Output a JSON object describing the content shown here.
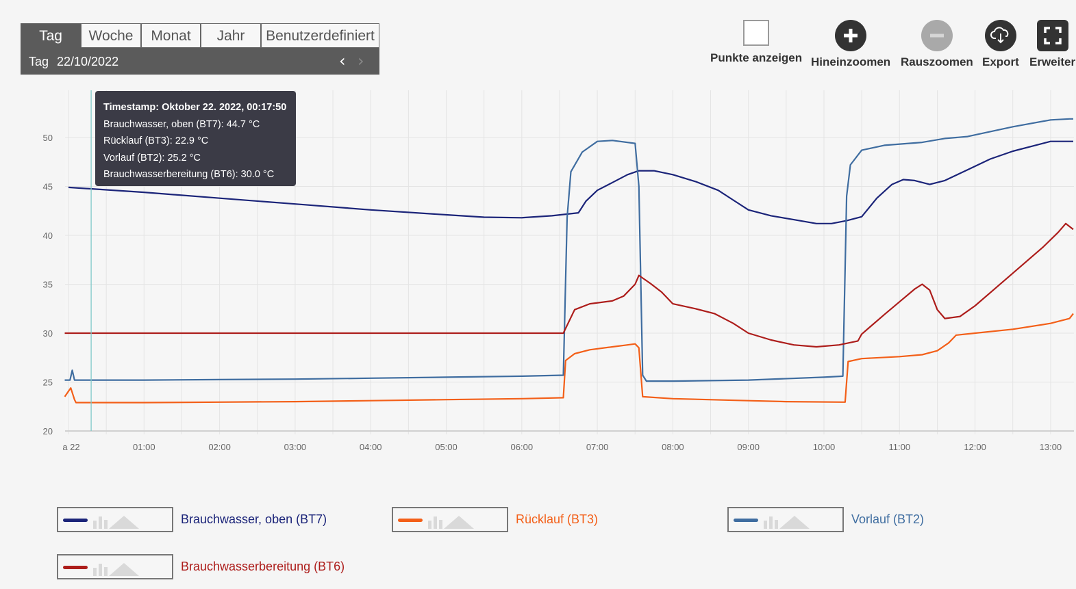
{
  "period": {
    "tabs": [
      {
        "label": "Tag",
        "active": true
      },
      {
        "label": "Woche",
        "active": false
      },
      {
        "label": "Monat",
        "active": false
      },
      {
        "label": "Jahr",
        "active": false
      },
      {
        "label": "Benutzerdefiniert",
        "active": false
      }
    ],
    "date_label": "Tag",
    "date_value": "22/10/2022"
  },
  "toolbar": {
    "show_points": "Punkte anzeigen",
    "zoom_in": "Hineinzoomen",
    "zoom_out": "Rauszoomen",
    "export": "Export",
    "expand": "Erweiter"
  },
  "icons": {
    "checkbox": "checkbox-icon",
    "zoom_in": "plus-icon",
    "zoom_out": "minus-icon",
    "export": "cloud-download-icon",
    "expand": "fullscreen-icon",
    "prev": "chevron-left-icon",
    "next": "chevron-right-icon"
  },
  "tooltip": {
    "title": "Timestamp: Oktober 22. 2022, 00:17:50",
    "lines": [
      "Brauchwasser, oben (BT7): 44.7 °C",
      "Rücklauf (BT3): 22.9 °C",
      "Vorlauf (BT2): 25.2 °C",
      "Brauchwasserbereitung (BT6): 30.0 °C"
    ]
  },
  "chart_data": {
    "type": "line",
    "x_unit": "hours",
    "xlim": [
      -0.05,
      13.3
    ],
    "ylim": [
      20,
      54
    ],
    "yticks": [
      20,
      25,
      30,
      35,
      40,
      45,
      50
    ],
    "xticks": [
      {
        "x": 0,
        "label": "a 22"
      },
      {
        "x": 1,
        "label": "01:00"
      },
      {
        "x": 2,
        "label": "02:00"
      },
      {
        "x": 3,
        "label": "03:00"
      },
      {
        "x": 4,
        "label": "04:00"
      },
      {
        "x": 5,
        "label": "05:00"
      },
      {
        "x": 6,
        "label": "06:00"
      },
      {
        "x": 7,
        "label": "07:00"
      },
      {
        "x": 8,
        "label": "08:00"
      },
      {
        "x": 9,
        "label": "09:00"
      },
      {
        "x": 10,
        "label": "10:00"
      },
      {
        "x": 11,
        "label": "11:00"
      },
      {
        "x": 12,
        "label": "12:00"
      },
      {
        "x": 13,
        "label": "13:00"
      }
    ],
    "grid": true,
    "cursor_x": 0.3,
    "series": [
      {
        "name": "Brauchwasser, oben (BT7)",
        "color": "#1b2479",
        "points": [
          [
            0,
            44.9
          ],
          [
            1,
            44.4
          ],
          [
            2,
            43.8
          ],
          [
            3,
            43.2
          ],
          [
            4,
            42.6
          ],
          [
            5,
            42.1
          ],
          [
            5.5,
            41.85
          ],
          [
            6,
            41.8
          ],
          [
            6.4,
            42.0
          ],
          [
            6.75,
            42.3
          ],
          [
            6.85,
            43.5
          ],
          [
            7,
            44.6
          ],
          [
            7.2,
            45.4
          ],
          [
            7.4,
            46.2
          ],
          [
            7.55,
            46.6
          ],
          [
            7.75,
            46.6
          ],
          [
            8,
            46.2
          ],
          [
            8.3,
            45.5
          ],
          [
            8.6,
            44.6
          ],
          [
            8.8,
            43.6
          ],
          [
            9,
            42.6
          ],
          [
            9.3,
            42.0
          ],
          [
            9.6,
            41.6
          ],
          [
            9.9,
            41.2
          ],
          [
            10.1,
            41.2
          ],
          [
            10.3,
            41.5
          ],
          [
            10.5,
            41.9
          ],
          [
            10.7,
            43.8
          ],
          [
            10.9,
            45.2
          ],
          [
            11.05,
            45.7
          ],
          [
            11.2,
            45.6
          ],
          [
            11.4,
            45.2
          ],
          [
            11.6,
            45.6
          ],
          [
            11.9,
            46.7
          ],
          [
            12.2,
            47.8
          ],
          [
            12.5,
            48.6
          ],
          [
            12.8,
            49.2
          ],
          [
            13.0,
            49.6
          ],
          [
            13.3,
            49.6
          ]
        ]
      },
      {
        "name": "Rücklauf (BT3)",
        "color": "#f35f18",
        "points": [
          [
            -0.05,
            23.5
          ],
          [
            0.03,
            24.4
          ],
          [
            0.08,
            23.2
          ],
          [
            0.1,
            22.9
          ],
          [
            1,
            22.9
          ],
          [
            2,
            22.95
          ],
          [
            3,
            23.0
          ],
          [
            4,
            23.1
          ],
          [
            5,
            23.2
          ],
          [
            6,
            23.3
          ],
          [
            6.55,
            23.4
          ],
          [
            6.58,
            27.2
          ],
          [
            6.7,
            27.9
          ],
          [
            6.9,
            28.3
          ],
          [
            7.2,
            28.6
          ],
          [
            7.4,
            28.8
          ],
          [
            7.5,
            28.9
          ],
          [
            7.55,
            28.5
          ],
          [
            7.6,
            23.5
          ],
          [
            8,
            23.3
          ],
          [
            9,
            23.1
          ],
          [
            9.5,
            23.0
          ],
          [
            10.25,
            22.95
          ],
          [
            10.28,
            22.95
          ],
          [
            10.32,
            27.1
          ],
          [
            10.5,
            27.4
          ],
          [
            11,
            27.6
          ],
          [
            11.3,
            27.8
          ],
          [
            11.5,
            28.2
          ],
          [
            11.65,
            29.0
          ],
          [
            11.75,
            29.8
          ],
          [
            12,
            30.0
          ],
          [
            12.5,
            30.4
          ],
          [
            13,
            31.0
          ],
          [
            13.25,
            31.5
          ],
          [
            13.3,
            32.0
          ]
        ]
      },
      {
        "name": "Vorlauf (BT2)",
        "color": "#3f6da0",
        "points": [
          [
            -0.05,
            25.2
          ],
          [
            0.02,
            25.2
          ],
          [
            0.05,
            26.2
          ],
          [
            0.08,
            25.2
          ],
          [
            1,
            25.2
          ],
          [
            2,
            25.25
          ],
          [
            3,
            25.3
          ],
          [
            4,
            25.4
          ],
          [
            5,
            25.5
          ],
          [
            6,
            25.6
          ],
          [
            6.55,
            25.7
          ],
          [
            6.6,
            41.8
          ],
          [
            6.65,
            46.5
          ],
          [
            6.8,
            48.5
          ],
          [
            7.0,
            49.6
          ],
          [
            7.2,
            49.7
          ],
          [
            7.5,
            49.4
          ],
          [
            7.55,
            45.0
          ],
          [
            7.6,
            25.7
          ],
          [
            7.65,
            25.1
          ],
          [
            8,
            25.1
          ],
          [
            9,
            25.2
          ],
          [
            10,
            25.5
          ],
          [
            10.25,
            25.6
          ],
          [
            10.3,
            44.0
          ],
          [
            10.35,
            47.2
          ],
          [
            10.5,
            48.7
          ],
          [
            10.8,
            49.2
          ],
          [
            11.3,
            49.5
          ],
          [
            11.6,
            49.9
          ],
          [
            11.9,
            50.1
          ],
          [
            12.5,
            51.1
          ],
          [
            13.0,
            51.8
          ],
          [
            13.25,
            51.9
          ],
          [
            13.3,
            51.9
          ]
        ]
      },
      {
        "name": "Brauchwasserbereitung (BT6)",
        "color": "#ad1d1b",
        "points": [
          [
            -0.05,
            30.0
          ],
          [
            1,
            30.0
          ],
          [
            2,
            30.0
          ],
          [
            3,
            30.0
          ],
          [
            4,
            30.0
          ],
          [
            5,
            30.0
          ],
          [
            6,
            30.0
          ],
          [
            6.55,
            30.0
          ],
          [
            6.7,
            32.4
          ],
          [
            6.9,
            33.0
          ],
          [
            7.2,
            33.3
          ],
          [
            7.35,
            33.8
          ],
          [
            7.5,
            35.0
          ],
          [
            7.55,
            35.9
          ],
          [
            7.7,
            35.1
          ],
          [
            7.85,
            34.2
          ],
          [
            8,
            33.0
          ],
          [
            8.3,
            32.5
          ],
          [
            8.55,
            32.0
          ],
          [
            8.8,
            31.0
          ],
          [
            9,
            30.0
          ],
          [
            9.3,
            29.3
          ],
          [
            9.6,
            28.8
          ],
          [
            9.9,
            28.6
          ],
          [
            10.2,
            28.8
          ],
          [
            10.45,
            29.2
          ],
          [
            10.5,
            29.9
          ],
          [
            10.8,
            31.9
          ],
          [
            11.0,
            33.2
          ],
          [
            11.2,
            34.5
          ],
          [
            11.3,
            35.0
          ],
          [
            11.4,
            34.4
          ],
          [
            11.5,
            32.4
          ],
          [
            11.6,
            31.5
          ],
          [
            11.8,
            31.7
          ],
          [
            12.0,
            32.8
          ],
          [
            12.3,
            34.8
          ],
          [
            12.6,
            36.8
          ],
          [
            12.9,
            38.8
          ],
          [
            13.1,
            40.3
          ],
          [
            13.2,
            41.2
          ],
          [
            13.3,
            40.6
          ]
        ]
      }
    ]
  },
  "legend": [
    {
      "label": "Brauchwasser, oben (BT7)",
      "color": "#1b2479"
    },
    {
      "label": "Rücklauf (BT3)",
      "color": "#f35f18"
    },
    {
      "label": "Vorlauf (BT2)",
      "color": "#3f6da0"
    },
    {
      "label": "Brauchwasserbereitung (BT6)",
      "color": "#ad1d1b"
    }
  ]
}
